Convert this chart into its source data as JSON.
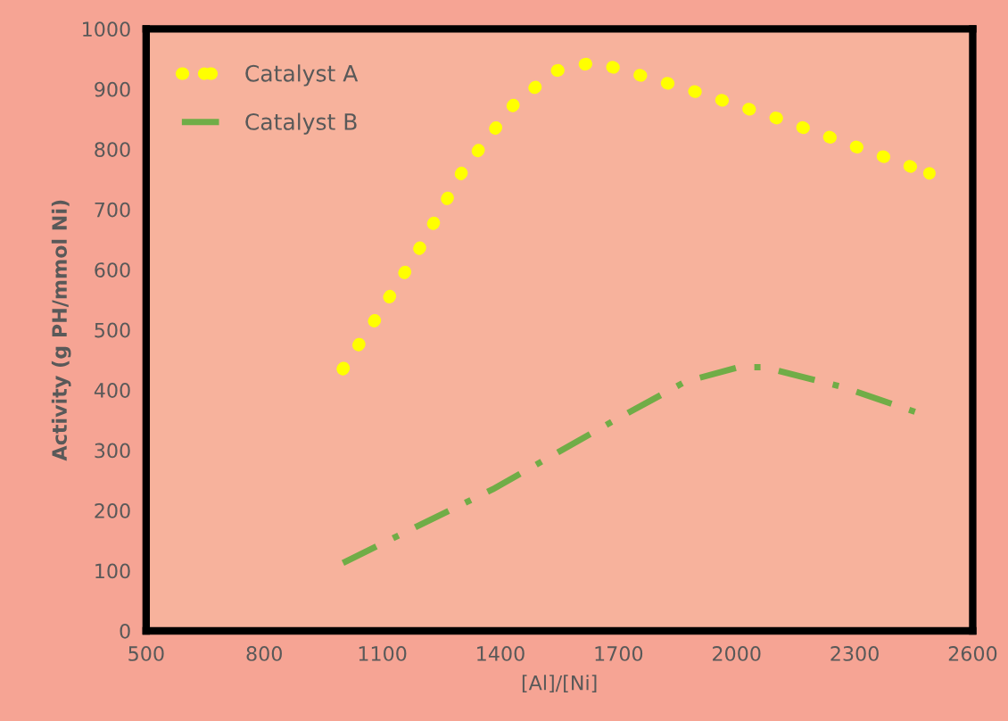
{
  "chart_data": {
    "type": "line",
    "xlabel": "[Al]/[Ni]",
    "ylabel": "Activity (g PH/mmol Ni)",
    "xlim": [
      500,
      2600
    ],
    "xticks": [
      500,
      800,
      1100,
      1400,
      1700,
      2000,
      2300,
      2600
    ],
    "ylim": [
      0,
      1000
    ],
    "yticks": [
      0,
      100,
      200,
      300,
      400,
      500,
      600,
      700,
      800,
      900,
      1000
    ],
    "grid": false,
    "legend": "top left",
    "series": [
      {
        "name": "Catalyst A",
        "color": "#ffff00",
        "line_style": "dotted",
        "x": [
          1000,
          1085,
          1190,
          1305,
          1435,
          1540,
          1640,
          1875,
          2110,
          2300,
          2490
        ],
        "values": [
          435,
          520,
          630,
          765,
          875,
          930,
          945,
          900,
          850,
          805,
          760
        ]
      },
      {
        "name": "Catalyst B",
        "color": "#70ad47",
        "line_style": "dashdot",
        "x": [
          1000,
          1380,
          1685,
          1870,
          2005,
          2070,
          2270,
          2470
        ],
        "values": [
          113,
          235,
          348,
          414,
          438,
          438,
          405,
          360
        ]
      }
    ]
  }
}
